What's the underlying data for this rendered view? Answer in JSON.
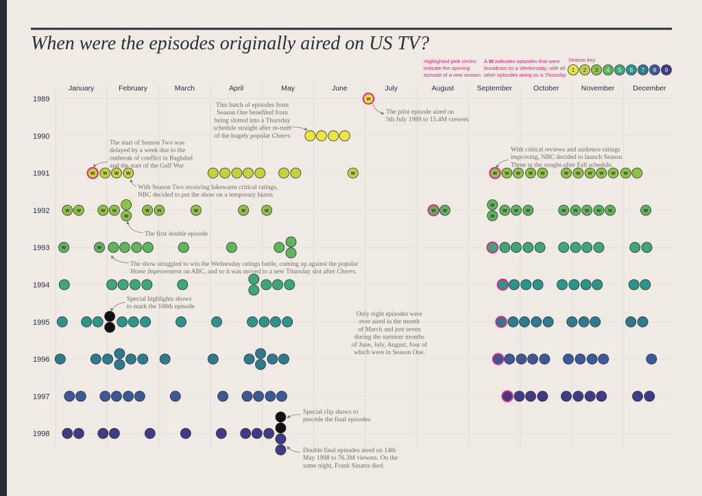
{
  "chart_data": {
    "type": "dot_timeline",
    "title": "When were the episodes originally aired on US TV?",
    "months": [
      "January",
      "February",
      "March",
      "April",
      "May",
      "June",
      "July",
      "August",
      "September",
      "October",
      "November",
      "December"
    ],
    "xlim": [
      0,
      12
    ],
    "wednesday_mark": "W",
    "season_colors": [
      "#ece53c",
      "#c4d23a",
      "#8fc442",
      "#5fb55a",
      "#3ea77a",
      "#2b958a",
      "#2d7b8c",
      "#3b5996",
      "#403b86"
    ],
    "special_color": "#111111",
    "premiere_color": "#e0247a",
    "legend": {
      "premiere": [
        "Highlighted pink circles",
        "indicate the opening",
        "episode of a new season"
      ],
      "wednesday": [
        [
          "A ",
          "W",
          " indicates episodes that were"
        ],
        [
          "broadcast on a ",
          "Wednesday",
          ", with all"
        ],
        [
          "other episodes airing on a ",
          "Thursday"
        ]
      ],
      "season_key": "Season key",
      "season_labels": [
        1,
        2,
        3,
        4,
        5,
        6,
        7,
        8,
        9
      ]
    },
    "rows": [
      {
        "year": 1989,
        "episodes": [
          {
            "x": 6.06,
            "s": 1,
            "w": true,
            "p": true
          }
        ]
      },
      {
        "year": 1990,
        "episodes": [
          {
            "x": 4.93,
            "s": 1
          },
          {
            "x": 5.15,
            "s": 1
          },
          {
            "x": 5.38,
            "s": 1
          },
          {
            "x": 5.6,
            "s": 1
          }
        ]
      },
      {
        "year": 1991,
        "episodes": [
          {
            "x": 0.72,
            "s": 2,
            "w": true,
            "p": true
          },
          {
            "x": 0.96,
            "s": 2,
            "w": true
          },
          {
            "x": 1.18,
            "s": 2,
            "w": true
          },
          {
            "x": 1.41,
            "s": 2,
            "w": true
          },
          {
            "x": 3.05,
            "s": 2
          },
          {
            "x": 3.28,
            "s": 2
          },
          {
            "x": 3.51,
            "s": 2
          },
          {
            "x": 3.73,
            "s": 2
          },
          {
            "x": 3.96,
            "s": 2
          },
          {
            "x": 4.42,
            "s": 2
          },
          {
            "x": 4.65,
            "s": 2
          },
          {
            "x": 5.76,
            "s": 2,
            "w": true
          },
          {
            "x": 8.51,
            "s": 3,
            "w": true,
            "p": true
          },
          {
            "x": 8.74,
            "s": 3,
            "w": true
          },
          {
            "x": 8.96,
            "s": 3,
            "w": true
          },
          {
            "x": 9.2,
            "s": 3,
            "w": true
          },
          {
            "x": 9.43,
            "s": 3,
            "w": true
          },
          {
            "x": 9.89,
            "s": 3,
            "w": true
          },
          {
            "x": 10.12,
            "s": 3,
            "w": true
          },
          {
            "x": 10.35,
            "s": 3,
            "w": true
          },
          {
            "x": 10.57,
            "s": 3,
            "w": true
          },
          {
            "x": 10.8,
            "s": 3,
            "w": true
          },
          {
            "x": 11.04,
            "s": 3,
            "w": true
          },
          {
            "x": 11.26,
            "s": 3
          }
        ]
      },
      {
        "year": 1992,
        "episodes": [
          {
            "x": 0.23,
            "s": 3,
            "w": true
          },
          {
            "x": 0.45,
            "s": 3,
            "w": true
          },
          {
            "x": 0.92,
            "s": 3,
            "w": true
          },
          {
            "x": 1.14,
            "s": 3,
            "w": true
          },
          {
            "x": 1.37,
            "s": 3
          },
          {
            "x": 1.37,
            "s": 3,
            "w": true
          },
          {
            "x": 1.78,
            "s": 3,
            "w": true
          },
          {
            "x": 2.01,
            "s": 3,
            "w": true
          },
          {
            "x": 2.72,
            "s": 3,
            "w": true
          },
          {
            "x": 3.64,
            "s": 3,
            "w": true
          },
          {
            "x": 4.09,
            "s": 3,
            "w": true
          },
          {
            "x": 7.32,
            "s": 4,
            "w": true,
            "p": true
          },
          {
            "x": 7.54,
            "s": 4,
            "w": true
          },
          {
            "x": 8.46,
            "s": 4,
            "w": true
          },
          {
            "x": 8.46,
            "s": 4,
            "w": true
          },
          {
            "x": 8.7,
            "s": 4,
            "w": true
          },
          {
            "x": 8.92,
            "s": 4,
            "w": true
          },
          {
            "x": 9.15,
            "s": 4,
            "w": true
          },
          {
            "x": 9.84,
            "s": 4,
            "w": true
          },
          {
            "x": 10.07,
            "s": 4,
            "w": true
          },
          {
            "x": 10.29,
            "s": 4,
            "w": true
          },
          {
            "x": 10.52,
            "s": 4,
            "w": true
          },
          {
            "x": 10.74,
            "s": 4,
            "w": true
          },
          {
            "x": 11.43,
            "s": 4,
            "w": true
          }
        ]
      },
      {
        "year": 1993,
        "episodes": [
          {
            "x": 0.16,
            "s": 4,
            "w": true
          },
          {
            "x": 0.85,
            "s": 4,
            "w": true
          },
          {
            "x": 1.12,
            "s": 4
          },
          {
            "x": 1.34,
            "s": 4
          },
          {
            "x": 1.57,
            "s": 4
          },
          {
            "x": 1.79,
            "s": 4
          },
          {
            "x": 2.48,
            "s": 4
          },
          {
            "x": 3.41,
            "s": 4
          },
          {
            "x": 4.33,
            "s": 4
          },
          {
            "x": 4.56,
            "s": 4
          },
          {
            "x": 4.56,
            "s": 4
          },
          {
            "x": 8.46,
            "s": 5,
            "p": true
          },
          {
            "x": 8.7,
            "s": 5
          },
          {
            "x": 8.92,
            "s": 5
          },
          {
            "x": 9.15,
            "s": 5
          },
          {
            "x": 9.38,
            "s": 5
          },
          {
            "x": 9.84,
            "s": 5
          },
          {
            "x": 10.07,
            "s": 5
          },
          {
            "x": 10.29,
            "s": 5
          },
          {
            "x": 10.52,
            "s": 5
          },
          {
            "x": 11.22,
            "s": 5
          },
          {
            "x": 11.45,
            "s": 5
          }
        ]
      },
      {
        "year": 1994,
        "episodes": [
          {
            "x": 0.17,
            "s": 5
          },
          {
            "x": 1.09,
            "s": 5
          },
          {
            "x": 1.31,
            "s": 5
          },
          {
            "x": 1.54,
            "s": 5
          },
          {
            "x": 1.77,
            "s": 5
          },
          {
            "x": 2.46,
            "s": 5
          },
          {
            "x": 3.84,
            "s": 5
          },
          {
            "x": 3.84,
            "s": 5
          },
          {
            "x": 4.08,
            "s": 5
          },
          {
            "x": 4.3,
            "s": 5
          },
          {
            "x": 4.53,
            "s": 5
          },
          {
            "x": 8.66,
            "s": 6,
            "p": true
          },
          {
            "x": 8.88,
            "s": 6
          },
          {
            "x": 9.11,
            "s": 6
          },
          {
            "x": 9.34,
            "s": 6
          },
          {
            "x": 9.81,
            "s": 6
          },
          {
            "x": 10.04,
            "s": 6
          },
          {
            "x": 10.27,
            "s": 6
          },
          {
            "x": 10.49,
            "s": 6
          },
          {
            "x": 11.2,
            "s": 6
          },
          {
            "x": 11.42,
            "s": 6
          }
        ]
      },
      {
        "year": 1995,
        "episodes": [
          {
            "x": 0.13,
            "s": 6
          },
          {
            "x": 0.6,
            "s": 6
          },
          {
            "x": 0.82,
            "s": 6
          },
          {
            "x": 1.05,
            "special": true
          },
          {
            "x": 1.05,
            "special": true
          },
          {
            "x": 1.29,
            "s": 6
          },
          {
            "x": 1.51,
            "s": 6
          },
          {
            "x": 1.74,
            "s": 6
          },
          {
            "x": 2.43,
            "s": 6
          },
          {
            "x": 3.12,
            "s": 6
          },
          {
            "x": 3.81,
            "s": 6
          },
          {
            "x": 4.04,
            "s": 6
          },
          {
            "x": 4.26,
            "s": 6
          },
          {
            "x": 4.49,
            "s": 6
          },
          {
            "x": 8.63,
            "s": 7,
            "p": true
          },
          {
            "x": 8.86,
            "s": 7
          },
          {
            "x": 9.08,
            "s": 7
          },
          {
            "x": 9.31,
            "s": 7
          },
          {
            "x": 9.54,
            "s": 7
          },
          {
            "x": 10.0,
            "s": 7
          },
          {
            "x": 10.23,
            "s": 7
          },
          {
            "x": 10.45,
            "s": 7
          },
          {
            "x": 11.14,
            "s": 7
          },
          {
            "x": 11.37,
            "s": 7
          }
        ]
      },
      {
        "year": 1996,
        "episodes": [
          {
            "x": 0.09,
            "s": 7
          },
          {
            "x": 0.78,
            "s": 7
          },
          {
            "x": 1.01,
            "s": 7
          },
          {
            "x": 1.24,
            "s": 7
          },
          {
            "x": 1.24,
            "s": 7
          },
          {
            "x": 1.46,
            "s": 7
          },
          {
            "x": 1.69,
            "s": 7
          },
          {
            "x": 2.12,
            "s": 7
          },
          {
            "x": 3.05,
            "s": 7
          },
          {
            "x": 3.75,
            "s": 7
          },
          {
            "x": 3.97,
            "s": 7
          },
          {
            "x": 3.97,
            "s": 7
          },
          {
            "x": 4.2,
            "s": 7
          },
          {
            "x": 4.42,
            "s": 7
          },
          {
            "x": 8.57,
            "s": 8,
            "p": true
          },
          {
            "x": 8.79,
            "s": 8
          },
          {
            "x": 9.02,
            "s": 8
          },
          {
            "x": 9.24,
            "s": 8
          },
          {
            "x": 9.47,
            "s": 8
          },
          {
            "x": 9.93,
            "s": 8
          },
          {
            "x": 10.16,
            "s": 8
          },
          {
            "x": 10.39,
            "s": 8
          },
          {
            "x": 10.61,
            "s": 8
          },
          {
            "x": 11.54,
            "s": 8
          }
        ]
      },
      {
        "year": 1997,
        "episodes": [
          {
            "x": 0.27,
            "s": 8
          },
          {
            "x": 0.49,
            "s": 8
          },
          {
            "x": 0.96,
            "s": 8
          },
          {
            "x": 1.18,
            "s": 8
          },
          {
            "x": 1.41,
            "s": 8
          },
          {
            "x": 1.63,
            "s": 8
          },
          {
            "x": 2.32,
            "s": 8
          },
          {
            "x": 3.24,
            "s": 8
          },
          {
            "x": 3.71,
            "s": 8
          },
          {
            "x": 3.93,
            "s": 8
          },
          {
            "x": 4.16,
            "s": 8
          },
          {
            "x": 4.38,
            "s": 8
          },
          {
            "x": 8.75,
            "s": 9,
            "p": true
          },
          {
            "x": 8.98,
            "s": 9
          },
          {
            "x": 9.2,
            "s": 9
          },
          {
            "x": 9.43,
            "s": 9
          },
          {
            "x": 9.89,
            "s": 9
          },
          {
            "x": 10.12,
            "s": 9
          },
          {
            "x": 10.35,
            "s": 9
          },
          {
            "x": 10.57,
            "s": 9
          },
          {
            "x": 11.27,
            "s": 9
          },
          {
            "x": 11.5,
            "s": 9
          }
        ]
      },
      {
        "year": 1998,
        "episodes": [
          {
            "x": 0.23,
            "s": 9
          },
          {
            "x": 0.45,
            "s": 9
          },
          {
            "x": 0.92,
            "s": 9
          },
          {
            "x": 1.14,
            "s": 9
          },
          {
            "x": 1.83,
            "s": 9
          },
          {
            "x": 2.52,
            "s": 9
          },
          {
            "x": 3.21,
            "s": 9
          },
          {
            "x": 3.68,
            "s": 9
          },
          {
            "x": 3.9,
            "s": 9
          },
          {
            "x": 4.13,
            "s": 9
          },
          {
            "x": 4.36,
            "special": true
          },
          {
            "x": 4.36,
            "special": true
          },
          {
            "x": 4.36,
            "s": 9
          },
          {
            "x": 4.36,
            "s": 9
          }
        ]
      }
    ],
    "annotations": [
      [
        "This batch of episodes from",
        "Season One benefited from",
        "being slotted into a Thursday",
        "schedule straight after re-runs",
        [
          "of the hugely popular ",
          "Cheers"
        ]
      ],
      [
        "The pilot episode aired on",
        "5th July 1989 to 15.4M viewers"
      ],
      [
        "The start of Season Two was",
        "delayed by a week due to the",
        "outbreak of conflict in Baghdad",
        "and the start of the Gulf War"
      ],
      [
        "With Season Two receiving lukewarm critical ratings,",
        "NBC decided to put the show on a temporary hiatus"
      ],
      [
        "With critical reviews and audience ratings",
        "improving, NBC decided to launch Season",
        "Three in the sought-after Fall schedule."
      ],
      [
        "The first double episode"
      ],
      [
        "The show struggled to win the Wednesday ratings battle, coming up against the popular",
        [
          "",
          "Home Improvement",
          " on ABC, and so it was moved to a new Thursday slot after ",
          "Cheers",
          "."
        ]
      ],
      [
        "Special highlights shows",
        "to mark the 100th episode"
      ],
      [
        "Only eight episodes were",
        "ever aired in the month",
        "of March and just seven",
        "during the summer months",
        "of June, July, August, four of",
        "which were in Season One."
      ],
      [
        "Special clip shows to",
        "precede the final episodes"
      ],
      [
        "Double final episodes aired on 14th",
        "May 1998 to 76.3M viewers. On the",
        "same night, Frank Sinatra died."
      ]
    ]
  }
}
